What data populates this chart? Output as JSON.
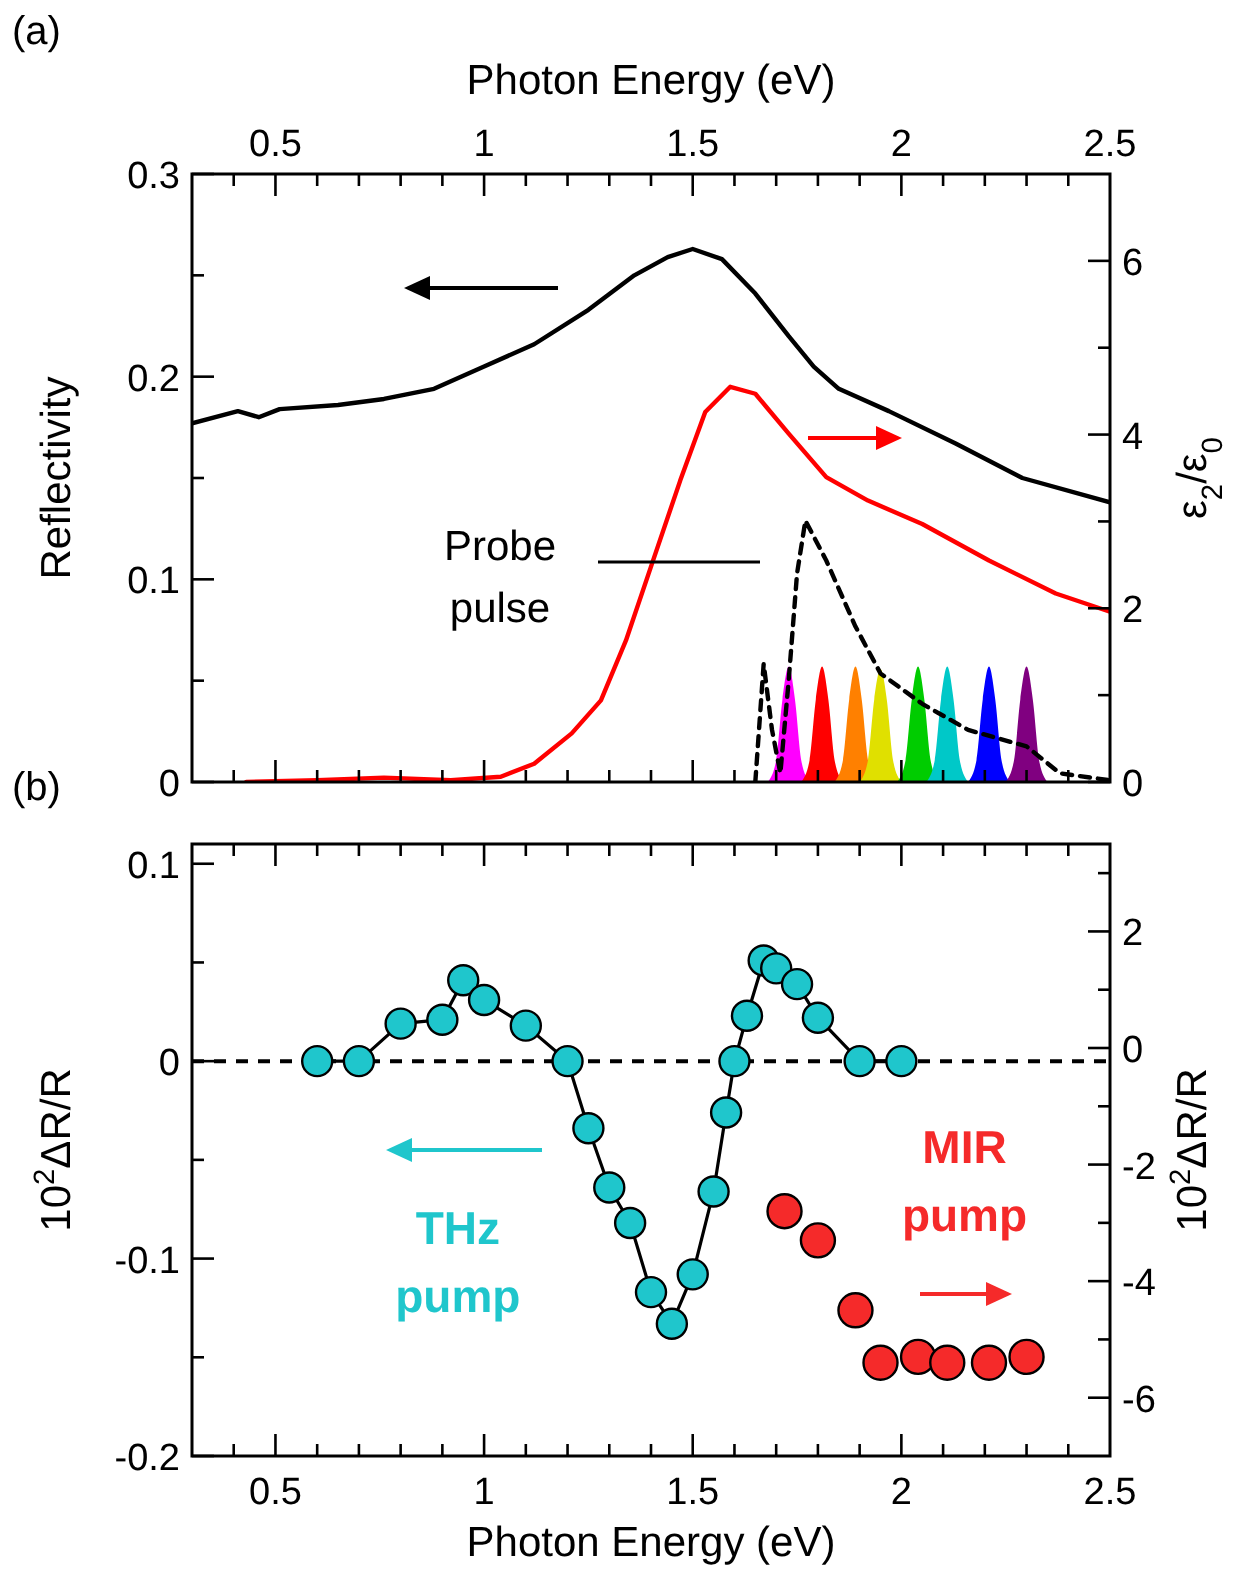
{
  "chart_data": [
    {
      "type": "line",
      "ylabel": "Reflectivity",
      "y2label": "ε$_{2}$/ε$_{0}$",
      "xlabel": "Photon Energy (eV)",
      "xlim": [
        0.3,
        2.5
      ],
      "ylim": [
        0,
        0.3
      ],
      "y2lim": [
        0,
        7
      ],
      "xticks": [
        0.5,
        1,
        1.5,
        2,
        2.5,
        {
          "value": 0.4,
          "label": null
        },
        {
          "value": 0.6,
          "label": null
        },
        {
          "value": 0.7,
          "label": null
        },
        {
          "value": 0.8,
          "label": null
        },
        {
          "value": 0.9,
          "label": null
        },
        {
          "value": 1.1,
          "label": null
        },
        {
          "value": 1.2,
          "label": null
        },
        {
          "value": 1.3,
          "label": null
        },
        {
          "value": 1.4,
          "label": null
        },
        {
          "value": 1.6,
          "label": null
        },
        {
          "value": 1.7,
          "label": null
        },
        {
          "value": 1.8,
          "label": null
        },
        {
          "value": 1.9,
          "label": null
        },
        {
          "value": 2.1,
          "label": null
        },
        {
          "value": 2.2,
          "label": null
        },
        {
          "value": 2.3,
          "label": null
        },
        {
          "value": 2.4,
          "label": null
        }
      ],
      "yticks": [
        0,
        0.1,
        0.2,
        0.3,
        {
          "value": 0.05,
          "label": null
        },
        {
          "value": 0.15,
          "label": null
        },
        {
          "value": 0.25,
          "label": null
        }
      ],
      "y2ticks": [
        0,
        2,
        4,
        6,
        {
          "value": 1,
          "label": null
        },
        {
          "value": 3,
          "label": null
        },
        {
          "value": 5,
          "label": null
        }
      ],
      "annotations": [
        "(a)",
        "Probe pulse"
      ],
      "series": [
        {
          "type": "area",
          "axis": "y2",
          "color": "#ff00ff",
          "x": [
            1.68,
            1.7,
            1.715,
            1.73,
            1.745,
            1.76,
            1.78
          ],
          "values": [
            0,
            0.25,
            0.95,
            1.33,
            0.95,
            0.25,
            0
          ]
        },
        {
          "type": "area",
          "axis": "y2",
          "color": "#ff0000",
          "x": [
            1.76,
            1.78,
            1.795,
            1.81,
            1.825,
            1.84,
            1.86
          ],
          "values": [
            0,
            0.25,
            0.95,
            1.33,
            0.95,
            0.25,
            0
          ]
        },
        {
          "type": "area",
          "axis": "y2",
          "color": "#ff8000",
          "x": [
            1.84,
            1.86,
            1.875,
            1.89,
            1.905,
            1.92,
            1.94
          ],
          "values": [
            0,
            0.25,
            0.95,
            1.33,
            0.95,
            0.25,
            0
          ]
        },
        {
          "type": "area",
          "axis": "y2",
          "color": "#e0e000",
          "x": [
            1.9,
            1.92,
            1.935,
            1.95,
            1.965,
            1.98,
            2.0
          ],
          "values": [
            0,
            0.25,
            0.95,
            1.3,
            0.95,
            0.25,
            0
          ]
        },
        {
          "type": "area",
          "axis": "y2",
          "color": "#00cc00",
          "x": [
            1.99,
            2.01,
            2.025,
            2.04,
            2.055,
            2.07,
            2.09
          ],
          "values": [
            0,
            0.25,
            0.95,
            1.33,
            0.95,
            0.25,
            0
          ]
        },
        {
          "type": "area",
          "axis": "y2",
          "color": "#00c8c8",
          "x": [
            2.06,
            2.08,
            2.095,
            2.11,
            2.125,
            2.14,
            2.16
          ],
          "values": [
            0,
            0.25,
            0.95,
            1.33,
            0.95,
            0.25,
            0
          ]
        },
        {
          "type": "area",
          "axis": "y2",
          "color": "#0000ff",
          "x": [
            2.16,
            2.18,
            2.195,
            2.21,
            2.225,
            2.24,
            2.26
          ],
          "values": [
            0,
            0.25,
            0.95,
            1.33,
            0.95,
            0.25,
            0
          ]
        },
        {
          "type": "area",
          "axis": "y2",
          "color": "#800080",
          "x": [
            2.25,
            2.27,
            2.285,
            2.3,
            2.315,
            2.33,
            2.35
          ],
          "values": [
            0,
            0.25,
            0.95,
            1.33,
            0.95,
            0.25,
            0
          ]
        },
        {
          "color": "#000000",
          "x": [
            0.3,
            0.41,
            0.46,
            0.51,
            0.65,
            0.76,
            0.88,
            1.0,
            1.12,
            1.25,
            1.36,
            1.44,
            1.5,
            1.57,
            1.65,
            1.73,
            1.79,
            1.85,
            1.97,
            2.13,
            2.29,
            2.5
          ],
          "values": [
            0.177,
            0.183,
            0.18,
            0.184,
            0.186,
            0.189,
            0.194,
            0.205,
            0.216,
            0.233,
            0.25,
            0.259,
            0.263,
            0.258,
            0.241,
            0.22,
            0.205,
            0.194,
            0.183,
            0.167,
            0.15,
            0.138
          ]
        },
        {
          "axis": "y2",
          "color": "#ff0000",
          "x": [
            0.43,
            0.6,
            0.76,
            0.92,
            1.04,
            1.12,
            1.21,
            1.28,
            1.34,
            1.4,
            1.47,
            1.53,
            1.59,
            1.65,
            1.73,
            1.82,
            1.92,
            2.05,
            2.21,
            2.37,
            2.5
          ],
          "values": [
            0,
            0.02,
            0.05,
            0.02,
            0.06,
            0.21,
            0.56,
            0.94,
            1.63,
            2.48,
            3.47,
            4.26,
            4.55,
            4.47,
            4.01,
            3.51,
            3.24,
            2.97,
            2.55,
            2.17,
            1.96
          ]
        },
        {
          "axis": "y2",
          "color": "#000000",
          "line_style": "dashed",
          "x": [
            1.65,
            1.67,
            1.69,
            1.71,
            1.73,
            1.75,
            1.77,
            1.82,
            1.89,
            1.95,
            2.05,
            2.16,
            2.3,
            2.38,
            2.5
          ],
          "values": [
            0,
            1.36,
            0.6,
            0.1,
            1.17,
            2.4,
            3.01,
            2.55,
            1.79,
            1.25,
            0.9,
            0.6,
            0.41,
            0.1,
            0.02
          ]
        }
      ]
    },
    {
      "type": "line",
      "xlabel": "Photon Energy (eV)",
      "ylabel": "10$^{2}$ΔR/R",
      "y2label": "10$^{2}$ΔR/R",
      "xlim": [
        0.3,
        2.5
      ],
      "ylim": [
        -0.2,
        0.11
      ],
      "y2lim": [
        -7,
        3.5
      ],
      "xticks": [
        0.5,
        1,
        1.5,
        2,
        2.5,
        {
          "value": 0.4,
          "label": null
        },
        {
          "value": 0.6,
          "label": null
        },
        {
          "value": 0.7,
          "label": null
        },
        {
          "value": 0.8,
          "label": null
        },
        {
          "value": 0.9,
          "label": null
        },
        {
          "value": 1.1,
          "label": null
        },
        {
          "value": 1.2,
          "label": null
        },
        {
          "value": 1.3,
          "label": null
        },
        {
          "value": 1.4,
          "label": null
        },
        {
          "value": 1.6,
          "label": null
        },
        {
          "value": 1.7,
          "label": null
        },
        {
          "value": 1.8,
          "label": null
        },
        {
          "value": 1.9,
          "label": null
        },
        {
          "value": 2.1,
          "label": null
        },
        {
          "value": 2.2,
          "label": null
        },
        {
          "value": 2.3,
          "label": null
        },
        {
          "value": 2.4,
          "label": null
        }
      ],
      "yticks": [
        -0.2,
        -0.1,
        0,
        0.1,
        {
          "value": -0.15,
          "label": null
        },
        {
          "value": -0.05,
          "label": null
        },
        {
          "value": 0.05,
          "label": null
        }
      ],
      "y2ticks": [
        -6,
        -4,
        -2,
        0,
        2,
        {
          "value": -5,
          "label": null
        },
        {
          "value": -3,
          "label": null
        },
        {
          "value": -1,
          "label": null
        },
        {
          "value": 1,
          "label": null
        },
        {
          "value": 3,
          "label": null
        }
      ],
      "ref_lines": [
        {
          "axis": "y",
          "value": 0,
          "line_style": "dashed",
          "color": "#000000"
        }
      ],
      "annotations": [
        "(b)"
      ],
      "series": [
        {
          "name": "THz pump",
          "color": "#1fc6cc",
          "marker": "circle",
          "x": [
            0.6,
            0.7,
            0.8,
            0.9,
            0.95,
            1.0,
            1.1,
            1.2,
            1.25,
            1.3,
            1.35,
            1.4,
            1.45,
            1.5,
            1.55,
            1.58,
            1.6,
            1.63,
            1.67,
            1.7,
            1.75,
            1.8,
            1.9,
            2.0
          ],
          "values": [
            0,
            0,
            0.019,
            0.021,
            0.041,
            0.031,
            0.018,
            0,
            -0.034,
            -0.064,
            -0.082,
            -0.117,
            -0.133,
            -0.108,
            -0.066,
            -0.026,
            0,
            0.023,
            0.051,
            0.047,
            0.039,
            0.022,
            0,
            0
          ]
        },
        {
          "type": "scatter",
          "name": "MIR pump",
          "axis": "y2",
          "color": "#f52a2a",
          "marker": "circle",
          "x": [
            1.72,
            1.8,
            1.89,
            1.95,
            2.04,
            2.11,
            2.21,
            2.3
          ],
          "values": [
            -2.8,
            -3.3,
            -4.5,
            -5.4,
            -5.3,
            -5.4,
            -5.4,
            -5.3
          ]
        }
      ]
    }
  ]
}
